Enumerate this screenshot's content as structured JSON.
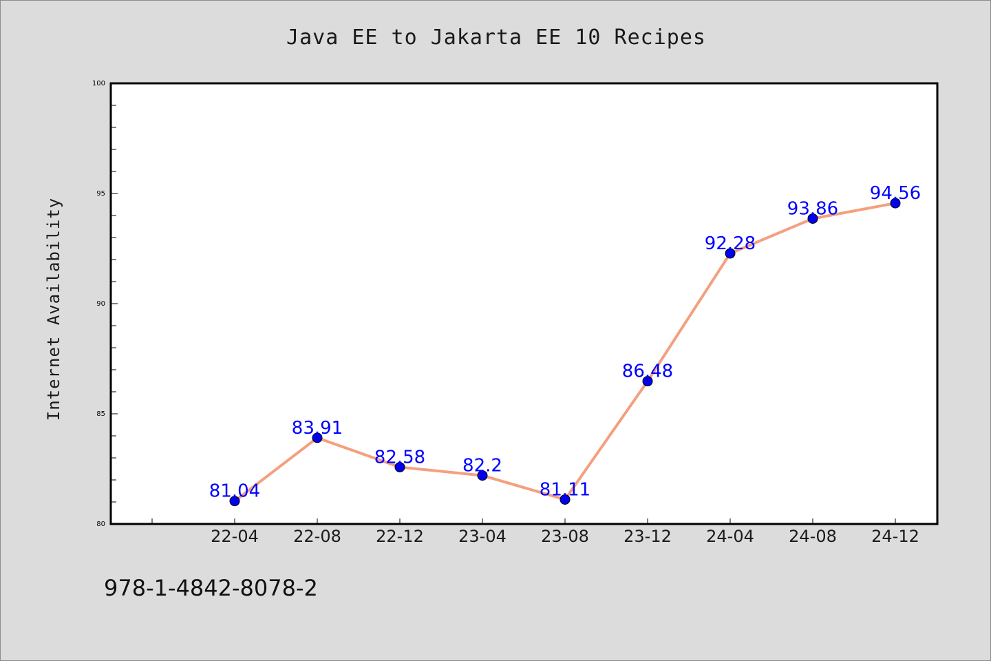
{
  "chart_data": {
    "type": "line",
    "title": "Java EE to Jakarta EE 10 Recipes",
    "xlabel": "",
    "ylabel": "Internet Availability",
    "categories": [
      "22-04",
      "22-08",
      "22-12",
      "23-04",
      "23-08",
      "23-12",
      "24-04",
      "24-08",
      "24-12"
    ],
    "series": [
      {
        "values": [
          81.04,
          83.91,
          82.58,
          82.2,
          81.11,
          86.48,
          92.28,
          93.86,
          94.56
        ],
        "labels": [
          "81.04",
          "83.91",
          "82.58",
          "82.2",
          "81.11",
          "86.48",
          "92.28",
          "93.86",
          "94.56"
        ],
        "line_color": "#f4a07f",
        "marker_color": "#0000ee"
      }
    ],
    "ylim": [
      80,
      100
    ],
    "yticks": [
      "80",
      "85",
      "90",
      "95",
      "100"
    ],
    "grid": false,
    "legend": "none"
  },
  "footer": {
    "isbn": "978-1-4842-8078-2"
  },
  "colors": {
    "background": "#dcdcdc",
    "plot_background": "#ffffff",
    "data_label": "#0000ff"
  }
}
